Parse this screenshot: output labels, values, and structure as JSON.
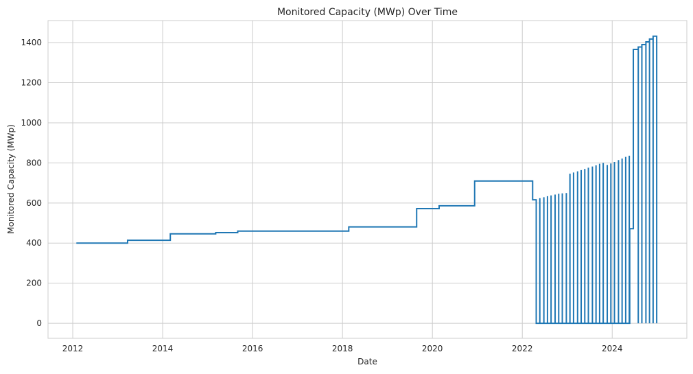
{
  "chart_data": {
    "type": "line",
    "drawstyle": "steps-post",
    "title": "Monitored Capacity (MWp) Over Time",
    "xlabel": "Date",
    "ylabel": "Monitored Capacity (MWp)",
    "x_ticks": [
      2012,
      2014,
      2016,
      2018,
      2020,
      2022,
      2024
    ],
    "y_ticks": [
      0,
      200,
      400,
      600,
      800,
      1000,
      1200,
      1400
    ],
    "xlim": [
      2011.45,
      2025.66
    ],
    "ylim": [
      -75,
      1510
    ],
    "grid": true,
    "line_color": "#1f77b4",
    "series": [
      {
        "points": [
          [
            2012.08,
            400
          ],
          [
            2013.22,
            414
          ],
          [
            2014.17,
            446
          ],
          [
            2015.18,
            452
          ],
          [
            2015.67,
            460
          ],
          [
            2018.14,
            481
          ],
          [
            2019.65,
            572
          ],
          [
            2020.15,
            586
          ],
          [
            2020.94,
            710
          ],
          [
            2022.23,
            616
          ],
          [
            2022.31,
            619
          ],
          [
            2022.31,
            0
          ],
          [
            2022.39,
            0
          ],
          [
            2022.39,
            624
          ],
          [
            2022.39,
            0
          ],
          [
            2022.48,
            0
          ],
          [
            2022.48,
            629
          ],
          [
            2022.48,
            0
          ],
          [
            2022.56,
            0
          ],
          [
            2022.56,
            634
          ],
          [
            2022.56,
            0
          ],
          [
            2022.64,
            0
          ],
          [
            2022.64,
            638
          ],
          [
            2022.64,
            0
          ],
          [
            2022.73,
            0
          ],
          [
            2022.73,
            642
          ],
          [
            2022.73,
            0
          ],
          [
            2022.81,
            0
          ],
          [
            2022.81,
            646
          ],
          [
            2022.81,
            0
          ],
          [
            2022.89,
            0
          ],
          [
            2022.89,
            648
          ],
          [
            2022.89,
            0
          ],
          [
            2022.98,
            0
          ],
          [
            2022.98,
            650
          ],
          [
            2022.98,
            0
          ],
          [
            2023.06,
            0
          ],
          [
            2023.06,
            746
          ],
          [
            2023.06,
            0
          ],
          [
            2023.14,
            0
          ],
          [
            2023.14,
            752
          ],
          [
            2023.14,
            0
          ],
          [
            2023.23,
            0
          ],
          [
            2023.23,
            758
          ],
          [
            2023.23,
            0
          ],
          [
            2023.31,
            0
          ],
          [
            2023.31,
            764
          ],
          [
            2023.31,
            0
          ],
          [
            2023.39,
            0
          ],
          [
            2023.39,
            770
          ],
          [
            2023.39,
            0
          ],
          [
            2023.47,
            0
          ],
          [
            2023.47,
            776
          ],
          [
            2023.47,
            0
          ],
          [
            2023.56,
            0
          ],
          [
            2023.56,
            782
          ],
          [
            2023.56,
            0
          ],
          [
            2023.64,
            0
          ],
          [
            2023.64,
            788
          ],
          [
            2023.64,
            0
          ],
          [
            2023.72,
            0
          ],
          [
            2023.72,
            796
          ],
          [
            2023.72,
            0
          ],
          [
            2023.8,
            0
          ],
          [
            2023.8,
            800
          ],
          [
            2023.8,
            0
          ],
          [
            2023.89,
            0
          ],
          [
            2023.89,
            790
          ],
          [
            2023.89,
            0
          ],
          [
            2023.97,
            0
          ],
          [
            2023.97,
            797
          ],
          [
            2023.97,
            0
          ],
          [
            2024.05,
            0
          ],
          [
            2024.05,
            805
          ],
          [
            2024.05,
            0
          ],
          [
            2024.14,
            0
          ],
          [
            2024.14,
            814
          ],
          [
            2024.14,
            0
          ],
          [
            2024.22,
            0
          ],
          [
            2024.22,
            822
          ],
          [
            2024.22,
            0
          ],
          [
            2024.3,
            0
          ],
          [
            2024.3,
            830
          ],
          [
            2024.3,
            0
          ],
          [
            2024.38,
            0
          ],
          [
            2024.38,
            836
          ],
          [
            2024.38,
            0
          ],
          [
            2024.39,
            0
          ],
          [
            2024.39,
            472
          ],
          [
            2024.47,
            472
          ],
          [
            2024.47,
            1366
          ],
          [
            2024.58,
            1366
          ],
          [
            2024.58,
            0
          ],
          [
            2024.58,
            1378
          ],
          [
            2024.66,
            1378
          ],
          [
            2024.66,
            0
          ],
          [
            2024.66,
            1390
          ],
          [
            2024.75,
            1390
          ],
          [
            2024.75,
            0
          ],
          [
            2024.75,
            1404
          ],
          [
            2024.83,
            1404
          ],
          [
            2024.83,
            0
          ],
          [
            2024.83,
            1418
          ],
          [
            2024.91,
            1418
          ],
          [
            2024.91,
            0
          ],
          [
            2024.91,
            1432
          ],
          [
            2024.99,
            1432
          ],
          [
            2024.99,
            0
          ]
        ]
      }
    ]
  }
}
